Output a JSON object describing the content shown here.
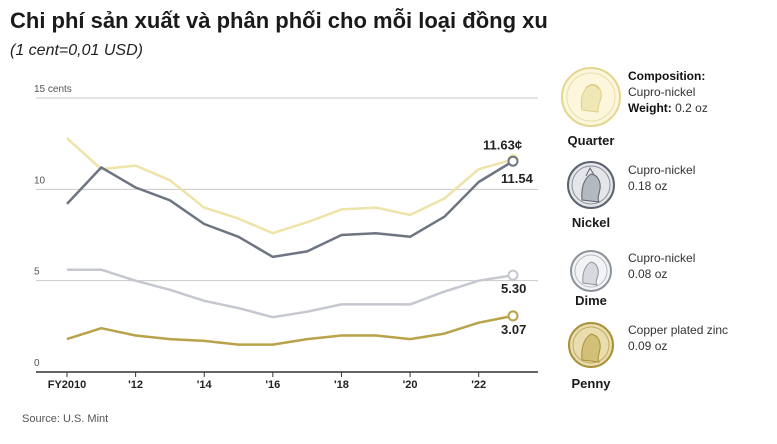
{
  "title": "Chi phí sản xuất và phân phối cho mỗi loại đồng xu",
  "subtitle": "(1 cent=0,01 USD)",
  "source": "Source: U.S. Mint",
  "colors": {
    "quarter": "#efe3a9",
    "nickel": "#6e7582",
    "dime": "#c5c8d0",
    "penny": "#b8a34a",
    "grid": "#c9c9c9",
    "axis": "#333333"
  },
  "chart_data": {
    "type": "line",
    "title": "Chi phí sản xuất và phân phối cho mỗi loại đồng xu",
    "xlabel": "",
    "ylabel": "cents",
    "x": [
      2010,
      2011,
      2012,
      2013,
      2014,
      2015,
      2016,
      2017,
      2018,
      2019,
      2020,
      2021,
      2022,
      2023
    ],
    "ylim": [
      0,
      15
    ],
    "y_ticks": [
      {
        "value": 0,
        "label": "0"
      },
      {
        "value": 5,
        "label": "5"
      },
      {
        "value": 10,
        "label": "10"
      },
      {
        "value": 15,
        "label": "15 cents"
      }
    ],
    "x_ticks": [
      {
        "value": 2010,
        "label": "FY2010"
      },
      {
        "value": 2012,
        "label": "'12"
      },
      {
        "value": 2014,
        "label": "'14"
      },
      {
        "value": 2016,
        "label": "'16"
      },
      {
        "value": 2018,
        "label": "'18"
      },
      {
        "value": 2020,
        "label": "'20"
      },
      {
        "value": 2022,
        "label": "'22"
      }
    ],
    "series": [
      {
        "name": "Quarter",
        "key": "quarter",
        "end_label": "11.63¢",
        "values": [
          12.8,
          11.1,
          11.3,
          10.5,
          9.0,
          8.4,
          7.6,
          8.2,
          8.9,
          9.0,
          8.6,
          9.5,
          11.1,
          11.63
        ]
      },
      {
        "name": "Nickel",
        "key": "nickel",
        "end_label": "11.54",
        "values": [
          9.2,
          11.2,
          10.1,
          9.4,
          8.1,
          7.4,
          6.3,
          6.6,
          7.5,
          7.6,
          7.4,
          8.5,
          10.4,
          11.54
        ]
      },
      {
        "name": "Dime",
        "key": "dime",
        "end_label": "5.30",
        "values": [
          5.6,
          5.6,
          5.0,
          4.5,
          3.9,
          3.5,
          3.0,
          3.3,
          3.7,
          3.7,
          3.7,
          4.4,
          5.0,
          5.3
        ]
      },
      {
        "name": "Penny",
        "key": "penny",
        "end_label": "3.07",
        "values": [
          1.8,
          2.4,
          2.0,
          1.8,
          1.7,
          1.5,
          1.5,
          1.8,
          2.0,
          2.0,
          1.8,
          2.1,
          2.7,
          3.07
        ]
      }
    ]
  },
  "coins": [
    {
      "name": "Quarter",
      "key": "quarter",
      "composition_label": "Composition:",
      "material": "Cupro-nickel",
      "weight_label": "Weight:",
      "weight": "0.2 oz"
    },
    {
      "name": "Nickel",
      "key": "nickel",
      "material": "Cupro-nickel",
      "weight": "0.18 oz"
    },
    {
      "name": "Dime",
      "key": "dime",
      "material": "Cupro-nickel",
      "weight": "0.08 oz"
    },
    {
      "name": "Penny",
      "key": "penny",
      "material": "Copper plated zinc",
      "weight": "0.09 oz"
    }
  ]
}
